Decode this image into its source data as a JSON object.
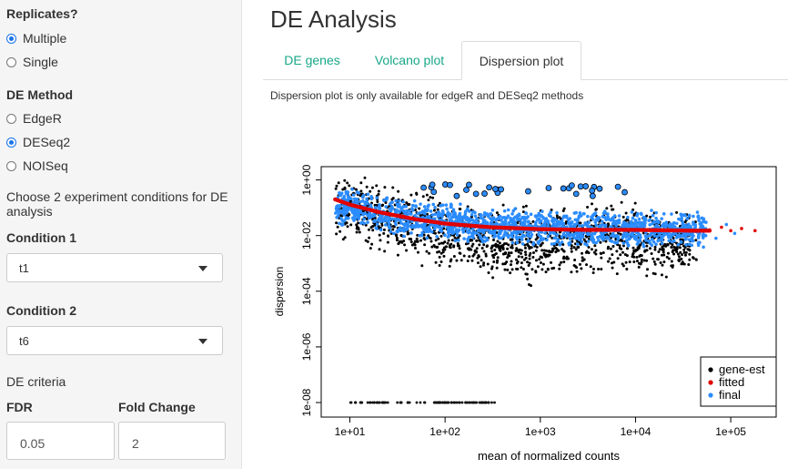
{
  "sidebar": {
    "replicates_label": "Replicates?",
    "replicates_options": [
      "Multiple",
      "Single"
    ],
    "replicates_selected": "Multiple",
    "method_label": "DE Method",
    "method_options": [
      "EdgeR",
      "DESeq2",
      "NOISeq"
    ],
    "method_selected": "DESeq2",
    "conditions_help": "Choose 2 experiment conditions for DE analysis",
    "condition1_label": "Condition 1",
    "condition1_value": "t1",
    "condition2_label": "Condition 2",
    "condition2_value": "t6",
    "criteria_label": "DE criteria",
    "fdr_label": "FDR",
    "fdr_value": "0.05",
    "fold_label": "Fold Change",
    "fold_value": "2"
  },
  "main": {
    "title": "DE Analysis",
    "tabs": [
      "DE genes",
      "Volcano plot",
      "Dispersion plot"
    ],
    "active_tab": "Dispersion plot",
    "note": "Dispersion plot is only available for edgeR and DESeq2 methods"
  },
  "colors": {
    "accent": "#18a789",
    "gene_est": "#000000",
    "fitted": "#e00000",
    "final": "#2b8cff"
  },
  "chart_data": {
    "type": "scatter",
    "xlabel": "mean of normalized counts",
    "ylabel": "dispersion",
    "x_scale": "log",
    "y_scale": "log",
    "xlim": [
      5,
      300000
    ],
    "ylim": [
      3e-09,
      3
    ],
    "x_ticks": [
      "1e+01",
      "1e+02",
      "1e+03",
      "1e+04",
      "1e+05"
    ],
    "y_ticks": [
      "1e+00",
      "1e-02",
      "1e-04",
      "1e-06",
      "1e-08"
    ],
    "legend_position": "bottom-right",
    "series": [
      {
        "name": "gene-est",
        "color": "#000000",
        "description_points": [
          [
            10,
            0.1
          ],
          [
            20,
            0.05
          ],
          [
            50,
            0.02
          ],
          [
            100,
            0.01
          ],
          [
            300,
            0.005
          ],
          [
            1000,
            0.004
          ],
          [
            5000,
            0.01
          ],
          [
            30000,
            0.005
          ]
        ],
        "zero_dispersion_x": [
          10,
          20,
          50,
          100,
          200,
          400
        ],
        "zero_dispersion_y": 1e-08
      },
      {
        "name": "fitted",
        "color": "#e00000",
        "points": [
          [
            7,
            0.2
          ],
          [
            10,
            0.13
          ],
          [
            20,
            0.07
          ],
          [
            50,
            0.038
          ],
          [
            100,
            0.027
          ],
          [
            300,
            0.02
          ],
          [
            1000,
            0.017
          ],
          [
            3000,
            0.016
          ],
          [
            10000,
            0.016
          ],
          [
            40000,
            0.015
          ],
          [
            100000,
            0.015
          ],
          [
            200000,
            0.015
          ]
        ]
      },
      {
        "name": "final",
        "color": "#2b8cff",
        "points": [
          [
            10,
            0.1
          ],
          [
            20,
            0.06
          ],
          [
            50,
            0.04
          ],
          [
            100,
            0.03
          ],
          [
            300,
            0.025
          ],
          [
            1000,
            0.02
          ],
          [
            5000,
            0.018
          ],
          [
            20000,
            0.016
          ],
          [
            100000,
            0.016
          ]
        ]
      }
    ]
  }
}
